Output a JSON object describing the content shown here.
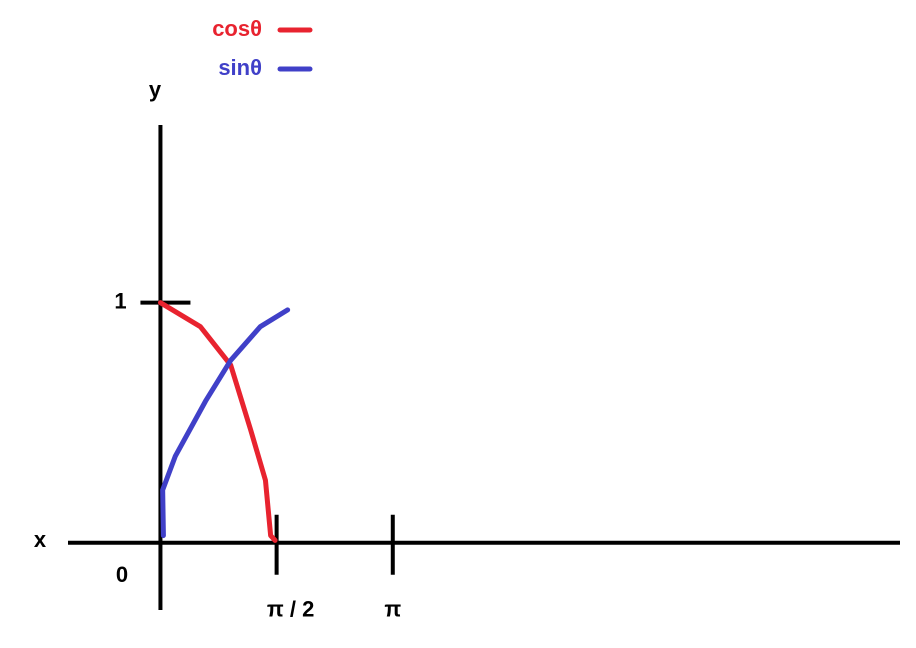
{
  "chart_data": {
    "type": "line",
    "x_label": "x",
    "y_label": "y",
    "origin_label": "0",
    "xlim": [
      -1.25,
      10
    ],
    "ylim": [
      -0.28,
      1.74
    ],
    "xticks": [
      {
        "value": 1.5708,
        "label": "π / 2"
      },
      {
        "value": 3.1416,
        "label": "π"
      }
    ],
    "yticks": [
      1
    ],
    "series": [
      {
        "name": "cosθ",
        "color": "#e8232f",
        "x": [
          0,
          0.54,
          0.95,
          1.22,
          1.42,
          1.49,
          1.55
        ],
        "values": [
          1,
          0.9,
          0.74,
          0.47,
          0.26,
          0.03,
          0.01
        ]
      },
      {
        "name": "sinθ",
        "color": "#4040c8",
        "x": [
          0.04,
          0.03,
          0.2,
          0.61,
          0.95,
          1.35,
          1.72
        ],
        "values": [
          0.03,
          0.22,
          0.36,
          0.59,
          0.76,
          0.9,
          0.97
        ]
      }
    ]
  }
}
